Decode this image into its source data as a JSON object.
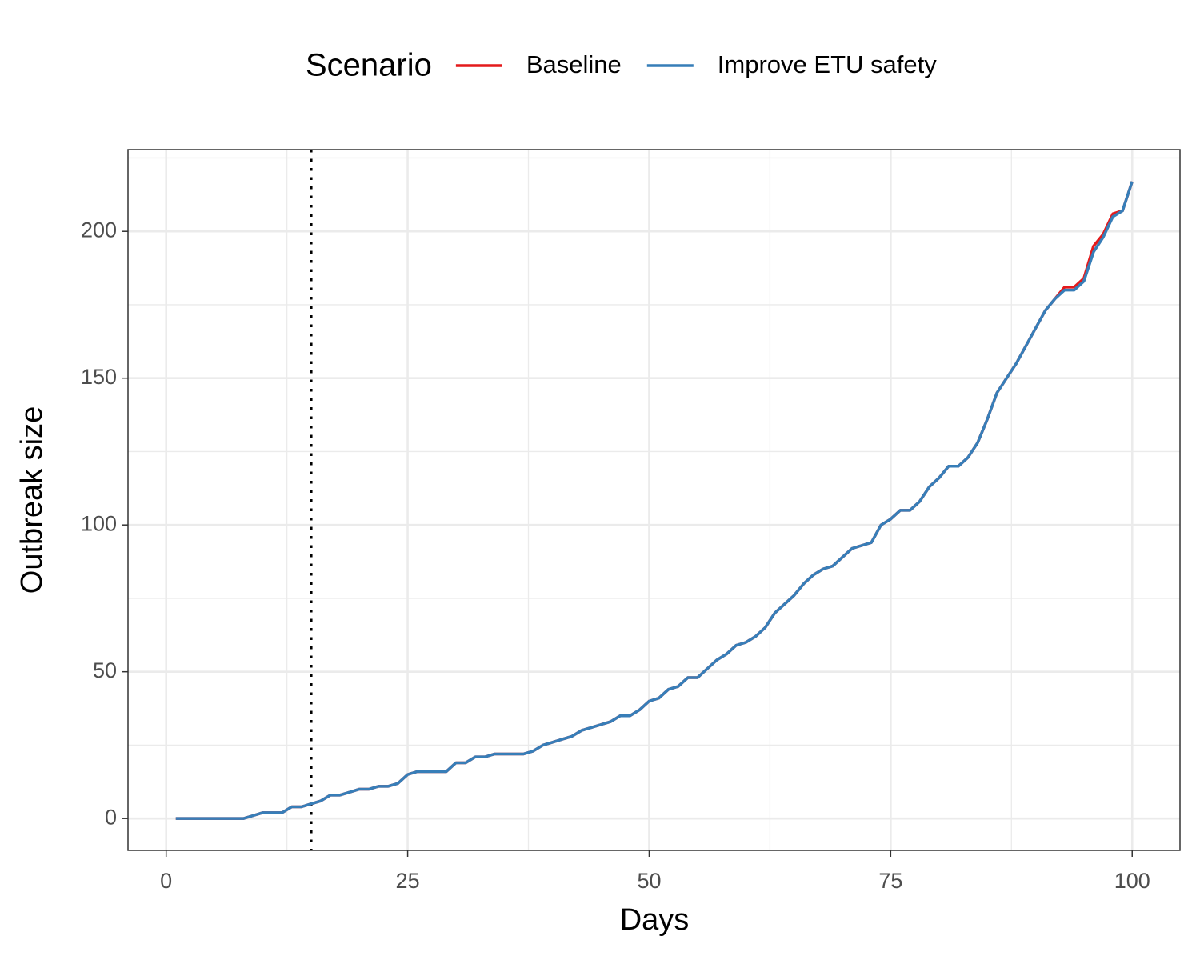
{
  "chart_data": {
    "type": "line",
    "xlabel": "Days",
    "ylabel": "Outbreak size",
    "legend_title": "Scenario",
    "legend": "top",
    "x": [
      1,
      2,
      3,
      4,
      5,
      6,
      7,
      8,
      9,
      10,
      11,
      12,
      13,
      14,
      15,
      16,
      17,
      18,
      19,
      20,
      21,
      22,
      23,
      24,
      25,
      26,
      27,
      28,
      29,
      30,
      31,
      32,
      33,
      34,
      35,
      36,
      37,
      38,
      39,
      40,
      41,
      42,
      43,
      44,
      45,
      46,
      47,
      48,
      49,
      50,
      51,
      52,
      53,
      54,
      55,
      56,
      57,
      58,
      59,
      60,
      61,
      62,
      63,
      64,
      65,
      66,
      67,
      68,
      69,
      70,
      71,
      72,
      73,
      74,
      75,
      76,
      77,
      78,
      79,
      80,
      81,
      82,
      83,
      84,
      85,
      86,
      87,
      88,
      89,
      90,
      91,
      92,
      93,
      94,
      95,
      96,
      97,
      98,
      99,
      100
    ],
    "series": [
      {
        "name": "Baseline",
        "color": "#e41a1c",
        "values": [
          0,
          0,
          0,
          0,
          0,
          0,
          0,
          0,
          1,
          2,
          2,
          2,
          4,
          4,
          5,
          6,
          8,
          8,
          9,
          10,
          10,
          11,
          11,
          12,
          15,
          16,
          16,
          16,
          16,
          19,
          19,
          21,
          21,
          22,
          22,
          22,
          22,
          23,
          25,
          26,
          27,
          28,
          30,
          31,
          32,
          33,
          35,
          35,
          37,
          40,
          41,
          44,
          45,
          48,
          48,
          51,
          54,
          56,
          59,
          60,
          62,
          65,
          70,
          73,
          76,
          80,
          83,
          85,
          86,
          89,
          92,
          93,
          94,
          100,
          102,
          105,
          105,
          108,
          113,
          116,
          120,
          120,
          123,
          128,
          136,
          145,
          150,
          155,
          161,
          167,
          173,
          177,
          181,
          181,
          184,
          195,
          199,
          206,
          207,
          217
        ]
      },
      {
        "name": "Improve ETU safety",
        "color": "#377eb8",
        "values": [
          0,
          0,
          0,
          0,
          0,
          0,
          0,
          0,
          1,
          2,
          2,
          2,
          4,
          4,
          5,
          6,
          8,
          8,
          9,
          10,
          10,
          11,
          11,
          12,
          15,
          16,
          16,
          16,
          16,
          19,
          19,
          21,
          21,
          22,
          22,
          22,
          22,
          23,
          25,
          26,
          27,
          28,
          30,
          31,
          32,
          33,
          35,
          35,
          37,
          40,
          41,
          44,
          45,
          48,
          48,
          51,
          54,
          56,
          59,
          60,
          62,
          65,
          70,
          73,
          76,
          80,
          83,
          85,
          86,
          89,
          92,
          93,
          94,
          100,
          102,
          105,
          105,
          108,
          113,
          116,
          120,
          120,
          123,
          128,
          136,
          145,
          150,
          155,
          161,
          167,
          173,
          177,
          180,
          180,
          183,
          193,
          198,
          205,
          207,
          217
        ]
      }
    ],
    "vline": 15,
    "xlim": [
      -3.95,
      104.95
    ],
    "xticks": [
      0,
      25,
      50,
      75,
      100
    ],
    "ylim": [
      -10.85,
      227.85
    ],
    "yticks": [
      0,
      50,
      100,
      150,
      200
    ],
    "grid": true
  }
}
